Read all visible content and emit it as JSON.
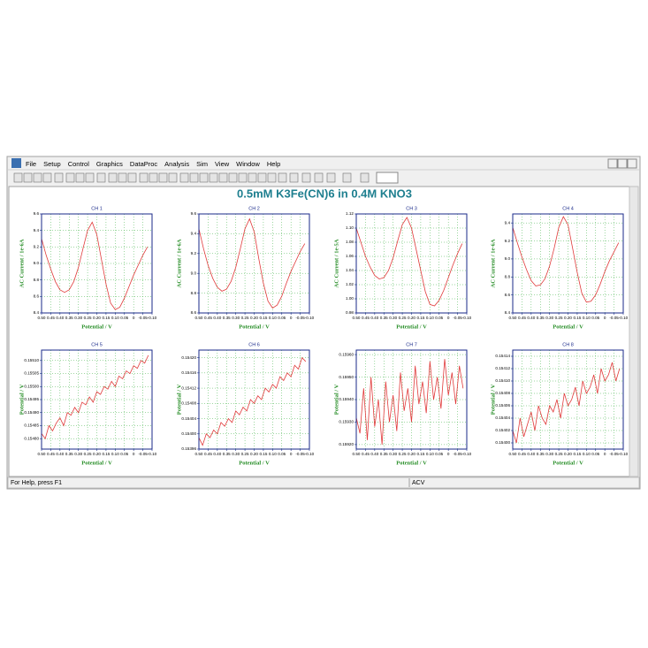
{
  "menu": [
    "File",
    "Setup",
    "Control",
    "Graphics",
    "DataProc",
    "Analysis",
    "Sim",
    "View",
    "Window",
    "Help"
  ],
  "title": "0.5mM K3Fe(CN)6 in 0.4M KNO3",
  "x_axis": {
    "lim": [
      0.5,
      -0.1
    ],
    "ticks": [
      {
        "value": 0.5,
        "label": "0.50"
      },
      0.45,
      {
        "value": 0.4,
        "label": "0.40"
      },
      0.35,
      {
        "value": 0.3,
        "label": "0.30"
      },
      0.25,
      {
        "value": 0.2,
        "label": "0.20"
      },
      0.15,
      {
        "value": 0.1,
        "label": "0.10"
      },
      0.05,
      0,
      -0.05,
      {
        "value": -0.1,
        "label": "-0.10"
      }
    ]
  },
  "charts": [
    {
      "type": "line",
      "title": "CH 1",
      "xlabel": "Potential / V",
      "ylabel": "AC Current / 1e-6A",
      "color": "#e03a3a",
      "ylim": [
        8.4,
        9.6
      ],
      "yticks": [
        8.4,
        8.6,
        8.8,
        {
          "value": 9,
          "label": "9.0"
        },
        9.2,
        9.4,
        9.6
      ],
      "x": [
        0.5,
        0.475,
        0.45,
        0.425,
        0.4,
        0.375,
        0.35,
        0.325,
        0.3,
        0.275,
        0.25,
        0.225,
        0.2,
        0.175,
        0.15,
        0.125,
        0.1,
        0.075,
        0.05,
        0.025,
        0,
        -0.025,
        -0.05,
        -0.075
      ],
      "values": [
        9.3,
        9.1,
        8.93,
        8.78,
        8.68,
        8.65,
        8.68,
        8.78,
        8.95,
        9.18,
        9.4,
        9.5,
        9.35,
        9.05,
        8.75,
        8.52,
        8.44,
        8.47,
        8.58,
        8.72,
        8.86,
        8.98,
        9.1,
        9.2
      ]
    },
    {
      "type": "line",
      "title": "CH 2",
      "xlabel": "Potential / V",
      "ylabel": "AC Current / 1e-6A",
      "color": "#e03a3a",
      "ylim": [
        8.6,
        9.6
      ],
      "yticks": [
        8.6,
        8.8,
        {
          "value": 9,
          "label": "9.0"
        },
        9.2,
        9.4,
        9.6
      ],
      "x": [
        0.5,
        0.475,
        0.45,
        0.425,
        0.4,
        0.375,
        0.35,
        0.325,
        0.3,
        0.275,
        0.25,
        0.225,
        0.2,
        0.175,
        0.15,
        0.125,
        0.1,
        0.075,
        0.05,
        0.025,
        0,
        -0.025,
        -0.05,
        -0.075
      ],
      "values": [
        9.45,
        9.25,
        9.08,
        8.95,
        8.86,
        8.82,
        8.84,
        8.92,
        9.06,
        9.25,
        9.45,
        9.55,
        9.42,
        9.15,
        8.9,
        8.72,
        8.65,
        8.68,
        8.77,
        8.9,
        9.02,
        9.12,
        9.22,
        9.3
      ]
    },
    {
      "type": "line",
      "title": "CH 3",
      "xlabel": "Potential / V",
      "ylabel": "AC Current / 1e-5A",
      "color": "#e03a3a",
      "ylim": [
        0.98,
        1.12
      ],
      "yticks": [
        0.98,
        {
          "value": 1,
          "label": "1.00"
        },
        1.02,
        1.04,
        1.06,
        1.08,
        {
          "value": 1.1,
          "label": "1.10"
        },
        1.12
      ],
      "x": [
        0.5,
        0.475,
        0.45,
        0.425,
        0.4,
        0.375,
        0.35,
        0.325,
        0.3,
        0.275,
        0.25,
        0.225,
        0.2,
        0.175,
        0.15,
        0.125,
        0.1,
        0.075,
        0.05,
        0.025,
        0,
        -0.025,
        -0.05,
        -0.075
      ],
      "values": [
        1.1,
        1.08,
        1.06,
        1.045,
        1.033,
        1.028,
        1.03,
        1.04,
        1.058,
        1.082,
        1.105,
        1.115,
        1.1,
        1.07,
        1.04,
        1.01,
        0.992,
        0.99,
        0.998,
        1.012,
        1.03,
        1.048,
        1.064,
        1.078
      ]
    },
    {
      "type": "line",
      "title": "CH 4",
      "xlabel": "Potential / V",
      "ylabel": "AC Current / 1e-6A",
      "color": "#e03a3a",
      "ylim": [
        8.4,
        9.5
      ],
      "yticks": [
        8.4,
        8.6,
        8.8,
        {
          "value": 9,
          "label": "9.0"
        },
        9.2,
        9.4
      ],
      "x": [
        0.5,
        0.475,
        0.45,
        0.425,
        0.4,
        0.375,
        0.35,
        0.325,
        0.3,
        0.275,
        0.25,
        0.225,
        0.2,
        0.175,
        0.15,
        0.125,
        0.1,
        0.075,
        0.05,
        0.025,
        0,
        -0.025,
        -0.05,
        -0.075
      ],
      "values": [
        9.35,
        9.18,
        9.02,
        8.88,
        8.76,
        8.7,
        8.71,
        8.78,
        8.92,
        9.12,
        9.35,
        9.47,
        9.38,
        9.12,
        8.85,
        8.62,
        8.52,
        8.53,
        8.6,
        8.72,
        8.86,
        8.98,
        9.08,
        9.18
      ]
    },
    {
      "type": "line",
      "title": "CH 5",
      "xlabel": "Potential / V",
      "ylabel": "Potential / V",
      "color": "#e03a3a",
      "ylim": [
        0.15476,
        0.15514
      ],
      "yticks": [
        {
          "value": 0.1548,
          "label": "0.15480"
        },
        0.15485,
        {
          "value": 0.1549,
          "label": "0.15490"
        },
        0.15495,
        {
          "value": 0.155,
          "label": "0.15500"
        },
        0.15505,
        {
          "value": 0.1551,
          "label": "0.15510"
        }
      ],
      "x": [
        0.5,
        0.48,
        0.46,
        0.44,
        0.42,
        0.4,
        0.38,
        0.36,
        0.34,
        0.32,
        0.3,
        0.28,
        0.26,
        0.24,
        0.22,
        0.2,
        0.18,
        0.16,
        0.14,
        0.12,
        0.1,
        0.08,
        0.06,
        0.04,
        0.02,
        0,
        -0.02,
        -0.04,
        -0.06,
        -0.08
      ],
      "values": [
        0.15482,
        0.1548,
        0.15485,
        0.15483,
        0.15486,
        0.15488,
        0.15485,
        0.1549,
        0.15489,
        0.15492,
        0.1549,
        0.15494,
        0.15493,
        0.15496,
        0.15494,
        0.15498,
        0.15497,
        0.155,
        0.15499,
        0.15502,
        0.155,
        0.15504,
        0.15503,
        0.15506,
        0.15505,
        0.15508,
        0.15507,
        0.1551,
        0.15509,
        0.15512
      ]
    },
    {
      "type": "line",
      "title": "CH 6",
      "xlabel": "Potential / V",
      "ylabel": "Potential / V",
      "color": "#e03a3a",
      "ylim": [
        0.15396,
        0.15422
      ],
      "yticks": [
        0.15396,
        {
          "value": 0.154,
          "label": "0.15400"
        },
        0.15404,
        0.15408,
        0.15412,
        0.15416,
        {
          "value": 0.1542,
          "label": "0.15420"
        }
      ],
      "x": [
        0.5,
        0.48,
        0.46,
        0.44,
        0.42,
        0.4,
        0.38,
        0.36,
        0.34,
        0.32,
        0.3,
        0.28,
        0.26,
        0.24,
        0.22,
        0.2,
        0.18,
        0.16,
        0.14,
        0.12,
        0.1,
        0.08,
        0.06,
        0.04,
        0.02,
        0,
        -0.02,
        -0.04,
        -0.06,
        -0.08
      ],
      "values": [
        0.15399,
        0.15397,
        0.154,
        0.15399,
        0.15401,
        0.154,
        0.15403,
        0.15402,
        0.15404,
        0.15403,
        0.15406,
        0.15405,
        0.15407,
        0.15406,
        0.15409,
        0.15408,
        0.1541,
        0.15409,
        0.15412,
        0.15411,
        0.15413,
        0.15412,
        0.15415,
        0.15414,
        0.15416,
        0.15415,
        0.15418,
        0.15417,
        0.1542,
        0.15419
      ]
    },
    {
      "type": "line",
      "title": "CH 7",
      "xlabel": "Potential / V",
      "ylabel": "Potential / V",
      "color": "#e03a3a",
      "ylim": [
        0.15918,
        0.15962
      ],
      "yticks": [
        {
          "value": 0.1592,
          "label": "0.15920"
        },
        {
          "value": 0.1593,
          "label": "0.15930"
        },
        {
          "value": 0.1594,
          "label": "0.15940"
        },
        {
          "value": 0.1595,
          "label": "0.15950"
        },
        {
          "value": 0.1596,
          "label": "0.15960"
        }
      ],
      "x": [
        0.5,
        0.48,
        0.46,
        0.44,
        0.42,
        0.4,
        0.38,
        0.36,
        0.34,
        0.32,
        0.3,
        0.28,
        0.26,
        0.24,
        0.22,
        0.2,
        0.18,
        0.16,
        0.14,
        0.12,
        0.1,
        0.08,
        0.06,
        0.04,
        0.02,
        0,
        -0.02,
        -0.04,
        -0.06,
        -0.08
      ],
      "values": [
        0.15932,
        0.15925,
        0.15945,
        0.15922,
        0.1595,
        0.15928,
        0.1594,
        0.1592,
        0.15948,
        0.1593,
        0.15942,
        0.15926,
        0.15952,
        0.15935,
        0.15945,
        0.1593,
        0.15955,
        0.15938,
        0.15948,
        0.15934,
        0.15957,
        0.1594,
        0.1595,
        0.15936,
        0.15958,
        0.15942,
        0.15952,
        0.15938,
        0.15955,
        0.15945
      ]
    },
    {
      "type": "line",
      "title": "CH 8",
      "xlabel": "Potential / V",
      "ylabel": "Potential / V",
      "color": "#e03a3a",
      "ylim": [
        0.15399,
        0.15415
      ],
      "yticks": [
        {
          "value": 0.154,
          "label": "0.15400"
        },
        0.15402,
        0.15404,
        0.15406,
        0.15408,
        {
          "value": 0.1541,
          "label": "0.15410"
        },
        0.15412,
        0.15414
      ],
      "x": [
        0.5,
        0.48,
        0.46,
        0.44,
        0.42,
        0.4,
        0.38,
        0.36,
        0.34,
        0.32,
        0.3,
        0.28,
        0.26,
        0.24,
        0.22,
        0.2,
        0.18,
        0.16,
        0.14,
        0.12,
        0.1,
        0.08,
        0.06,
        0.04,
        0.02,
        0,
        -0.02,
        -0.04,
        -0.06,
        -0.08
      ],
      "values": [
        0.15402,
        0.154,
        0.15404,
        0.15401,
        0.15403,
        0.15405,
        0.15402,
        0.15406,
        0.15404,
        0.15403,
        0.15406,
        0.15405,
        0.15407,
        0.15404,
        0.15408,
        0.15406,
        0.15407,
        0.15409,
        0.15406,
        0.1541,
        0.15408,
        0.15409,
        0.15411,
        0.15408,
        0.15412,
        0.1541,
        0.15411,
        0.15413,
        0.1541,
        0.15412
      ]
    }
  ],
  "status": {
    "help": "For Help, press F1",
    "mode": "ACV"
  }
}
